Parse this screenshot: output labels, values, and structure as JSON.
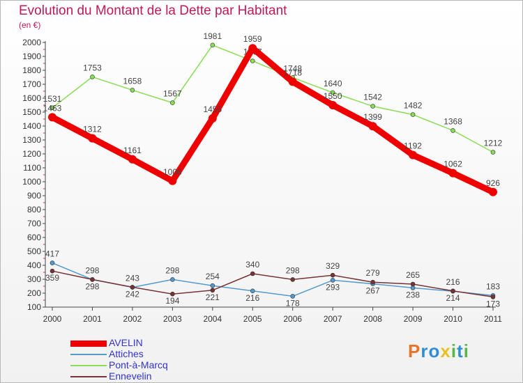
{
  "chart_data": {
    "type": "line",
    "title": "Evolution du Montant de la Dette par Habitant",
    "subtitle": "(en €)",
    "categories": [
      "2000",
      "2001",
      "2002",
      "2003",
      "2004",
      "2005",
      "2006",
      "2007",
      "2008",
      "2009",
      "2010",
      "2011"
    ],
    "ylim": [
      100,
      2000
    ],
    "yticks": [
      100,
      200,
      300,
      400,
      500,
      600,
      700,
      800,
      900,
      1000,
      1100,
      1200,
      1300,
      1400,
      1500,
      1600,
      1700,
      1800,
      1900,
      2000
    ],
    "grid": false,
    "legend_position": "bottom-left",
    "series": [
      {
        "name": "AVELIN",
        "color": "#ee0000",
        "values": [
          1463,
          1312,
          1161,
          1006,
          1455,
          1959,
          1718,
          1550,
          1399,
          1192,
          1062,
          926
        ]
      },
      {
        "name": "Attiches",
        "color": "#5599cc",
        "values": [
          417,
          298,
          242,
          298,
          254,
          216,
          178,
          293,
          267,
          238,
          214,
          183
        ]
      },
      {
        "name": "Pont-à-Marcq",
        "color": "#88dd55",
        "values": [
          1531,
          1753,
          1658,
          1567,
          1981,
          1867,
          1748,
          1640,
          1542,
          1482,
          1368,
          1212
        ]
      },
      {
        "name": "Ennevelin",
        "color": "#773333",
        "values": [
          359,
          298,
          243,
          194,
          221,
          340,
          298,
          329,
          279,
          265,
          216,
          173
        ]
      }
    ]
  },
  "brand": {
    "name": "Proxiti",
    "colors": [
      "#e8732a",
      "#2f8dd6",
      "#2f8dd6",
      "#e8c11f",
      "#59b54a",
      "#2f8dd6",
      "#59b54a"
    ]
  }
}
